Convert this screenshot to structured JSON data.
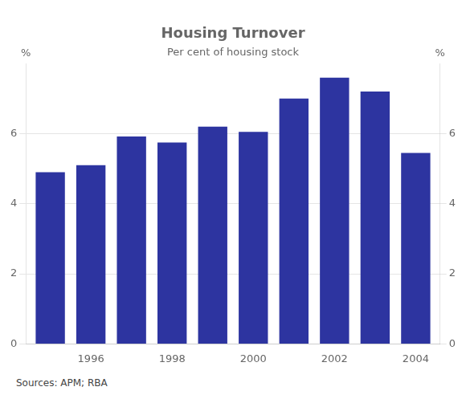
{
  "chart_data": {
    "type": "bar",
    "title": "Housing Turnover",
    "subtitle": "Per cent of housing stock",
    "ylabel": "%",
    "y2label": "%",
    "source": "Sources: APM; RBA",
    "x": [
      1995,
      1996,
      1997,
      1998,
      1999,
      2000,
      2001,
      2002,
      2003,
      2004
    ],
    "values": [
      4.9,
      5.1,
      5.92,
      5.75,
      6.2,
      6.05,
      7.0,
      7.6,
      7.2,
      5.45
    ],
    "color": "#2d34a0",
    "xlim": [
      1994.4,
      2004.6
    ],
    "xticks": [
      1996,
      1998,
      2000,
      2002,
      2004
    ],
    "ylim": [
      0,
      8
    ],
    "yticks": [
      0,
      2,
      4,
      6
    ],
    "y2lim": [
      0,
      8
    ],
    "y2ticks": [
      0,
      2,
      4,
      6
    ],
    "grid": true
  }
}
